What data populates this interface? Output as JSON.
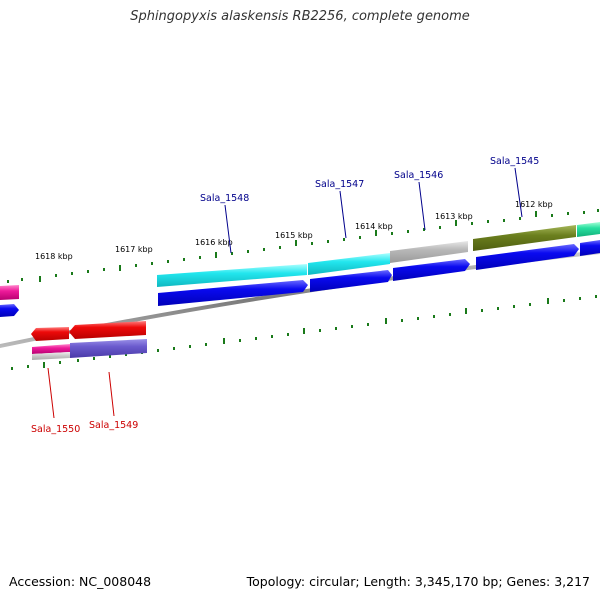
{
  "title": "Sphingopyxis alaskensis RB2256, complete genome",
  "accession": "Accession: NC_008048",
  "topology": "Topology: circular; Length: 3,345,170 bp; Genes: 3,217",
  "colors": {
    "backbone": "#777777",
    "tick": "#1a7a1a",
    "forward_gene": "#0000ee",
    "reverse_gene": "#ee0000",
    "forward_label": "#00008b",
    "reverse_label": "#cc0000"
  },
  "kbp_labels": [
    "1618 kbp",
    "1617 kbp",
    "1616 kbp",
    "1615 kbp",
    "1614 kbp",
    "1613 kbp",
    "1612 kbp"
  ],
  "forward_genes": [
    "Sala_1548",
    "Sala_1547",
    "Sala_1546",
    "Sala_1545"
  ],
  "reverse_genes": [
    "Sala_1550",
    "Sala_1549"
  ]
}
